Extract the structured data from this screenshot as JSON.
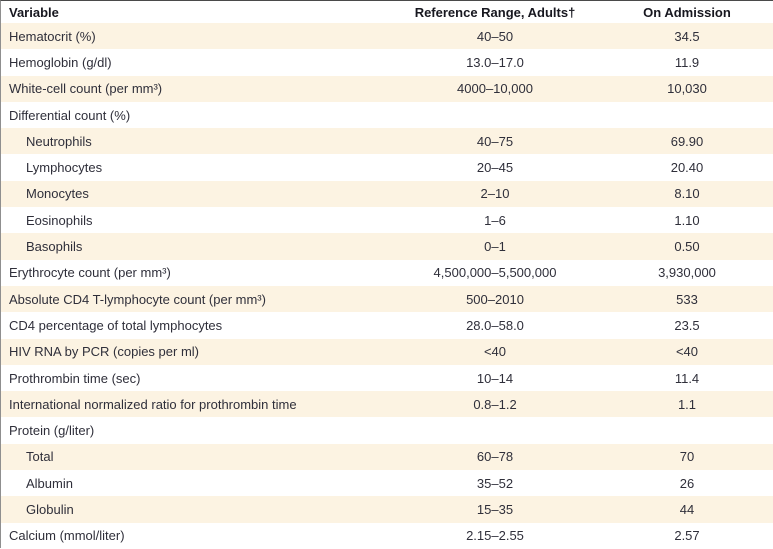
{
  "table": {
    "columns": [
      {
        "key": "variable",
        "label": "Variable"
      },
      {
        "key": "reference",
        "label": "Reference Range, Adults†"
      },
      {
        "key": "admission",
        "label": "On Admission"
      }
    ],
    "rows": [
      {
        "variable": "Hematocrit (%)",
        "reference": "40–50",
        "admission": "34.5",
        "indent": false,
        "shaded": true
      },
      {
        "variable": "Hemoglobin (g/dl)",
        "reference": "13.0–17.0",
        "admission": "11.9",
        "indent": false,
        "shaded": false
      },
      {
        "variable": "White-cell count (per mm³)",
        "reference": "4000–10,000",
        "admission": "10,030",
        "indent": false,
        "shaded": true
      },
      {
        "variable": "Differential count (%)",
        "reference": "",
        "admission": "",
        "indent": false,
        "shaded": false
      },
      {
        "variable": "Neutrophils",
        "reference": "40–75",
        "admission": "69.90",
        "indent": true,
        "shaded": true
      },
      {
        "variable": "Lymphocytes",
        "reference": "20–45",
        "admission": "20.40",
        "indent": true,
        "shaded": false
      },
      {
        "variable": "Monocytes",
        "reference": "2–10",
        "admission": "8.10",
        "indent": true,
        "shaded": true
      },
      {
        "variable": "Eosinophils",
        "reference": "1–6",
        "admission": "1.10",
        "indent": true,
        "shaded": false
      },
      {
        "variable": "Basophils",
        "reference": "0–1",
        "admission": "0.50",
        "indent": true,
        "shaded": true
      },
      {
        "variable": "Erythrocyte count (per mm³)",
        "reference": "4,500,000–5,500,000",
        "admission": "3,930,000",
        "indent": false,
        "shaded": false
      },
      {
        "variable": "Absolute CD4 T-lymphocyte count (per mm³)",
        "reference": "500–2010",
        "admission": "533",
        "indent": false,
        "shaded": true
      },
      {
        "variable": "CD4 percentage of total lymphocytes",
        "reference": "28.0–58.0",
        "admission": "23.5",
        "indent": false,
        "shaded": false
      },
      {
        "variable": "HIV RNA by PCR (copies per ml)",
        "reference": "<40",
        "admission": "<40",
        "indent": false,
        "shaded": true
      },
      {
        "variable": "Prothrombin time (sec)",
        "reference": "10–14",
        "admission": "11.4",
        "indent": false,
        "shaded": false
      },
      {
        "variable": "International normalized ratio for prothrombin time",
        "reference": "0.8–1.2",
        "admission": "1.1",
        "indent": false,
        "shaded": true
      },
      {
        "variable": "Protein (g/liter)",
        "reference": "",
        "admission": "",
        "indent": false,
        "shaded": false
      },
      {
        "variable": "Total",
        "reference": "60–78",
        "admission": "70",
        "indent": true,
        "shaded": true
      },
      {
        "variable": "Albumin",
        "reference": "35–52",
        "admission": "26",
        "indent": true,
        "shaded": false
      },
      {
        "variable": "Globulin",
        "reference": "15–35",
        "admission": "44",
        "indent": true,
        "shaded": true
      },
      {
        "variable": "Calcium (mmol/liter)",
        "reference": "2.15–2.55",
        "admission": "2.57",
        "indent": false,
        "shaded": false
      }
    ]
  },
  "colors": {
    "stripe": "#fcf3e2",
    "text": "#2f2f3a",
    "header_text": "#17171f",
    "rule": "#4a4a4a",
    "left_border": "#8f8f8f",
    "background": "#ffffff"
  }
}
